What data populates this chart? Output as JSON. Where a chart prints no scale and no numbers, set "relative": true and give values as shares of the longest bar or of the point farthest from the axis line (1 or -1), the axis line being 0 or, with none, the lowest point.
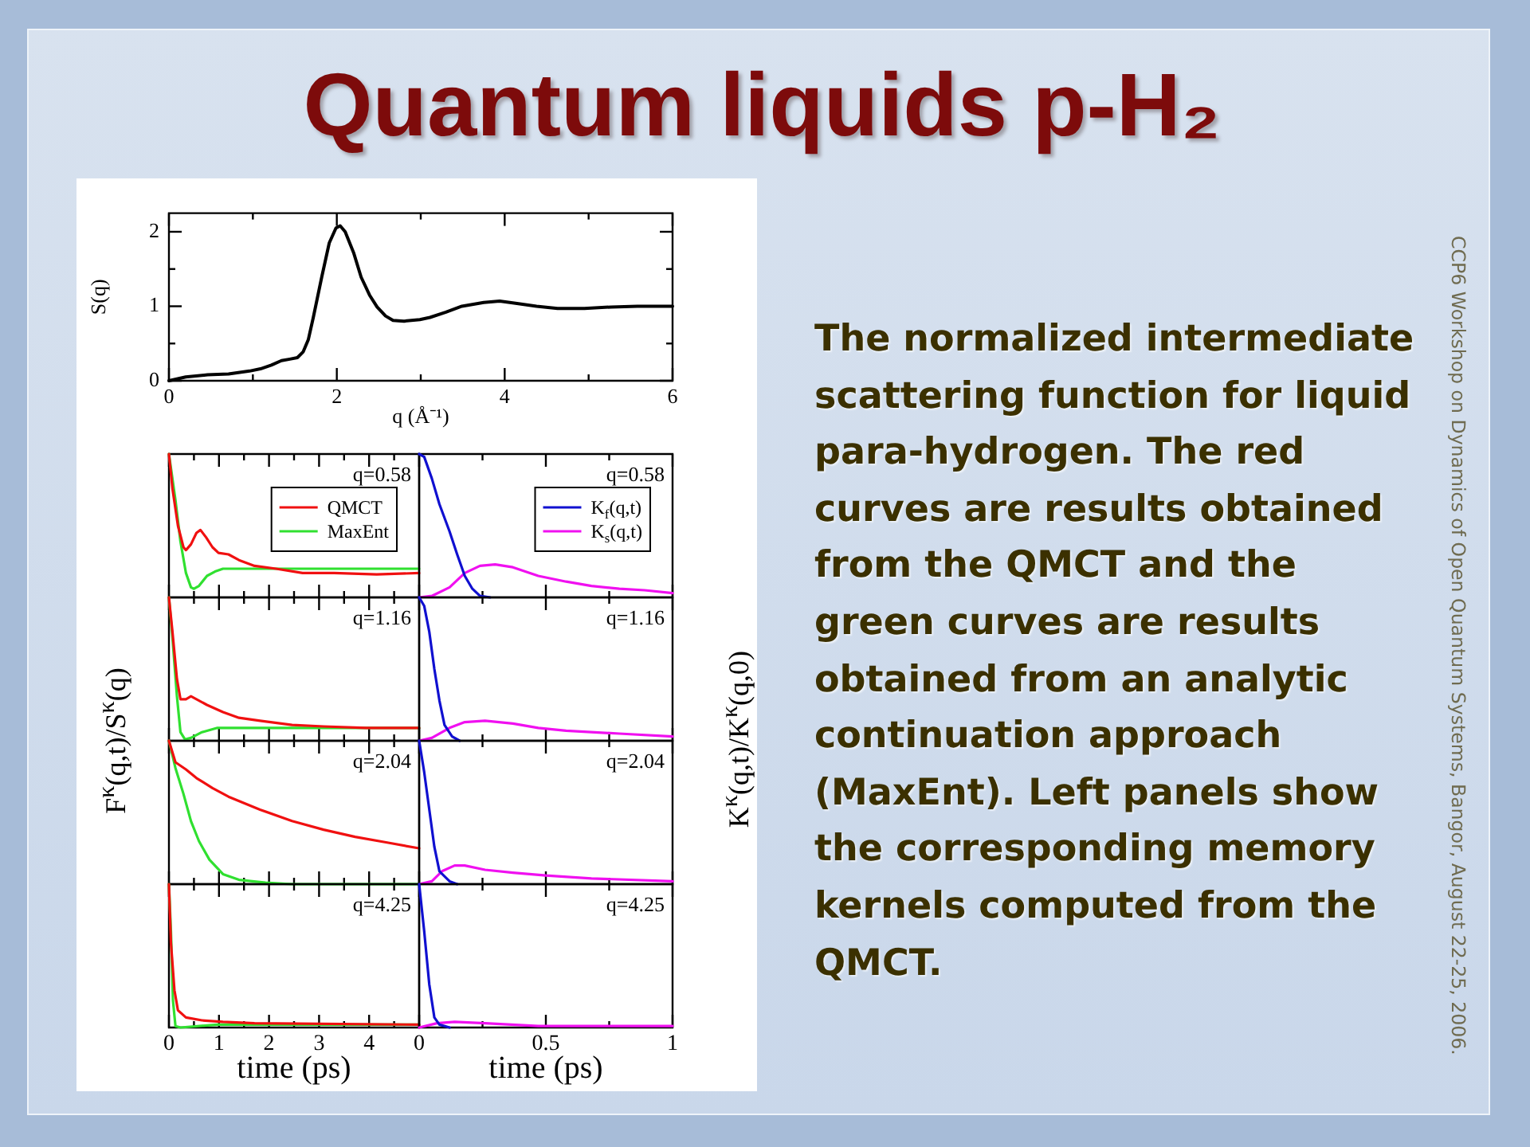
{
  "chart_data": [
    {
      "type": "other",
      "title": "Quantum liquids p-H₂",
      "annotations": [
        "The normalized intermediate scattering function for liquid para-hydrogen. The red curves are results obtained from the QMCT and the green curves are results obtained from an analytic continuation approach (MaxEnt). Left panels show the corresponding memory kernels computed from the QMCT.",
        "CCP6 Workshop on Dynamics of Open Quantum Systems, Bangor, August 22-25, 2006."
      ]
    },
    {
      "type": "line",
      "xlabel": "q (Å⁻¹)",
      "ylabel": "S(q)",
      "x": [
        0,
        0.2,
        0.46,
        0.71,
        0.96,
        1.09,
        1.22,
        1.34,
        1.44,
        1.53,
        1.6,
        1.66,
        1.72,
        1.82,
        1.91,
        1.99,
        2.04,
        2.1,
        2.2,
        2.29,
        2.39,
        2.48,
        2.58,
        2.67,
        2.8,
        2.99,
        3.11,
        3.3,
        3.49,
        3.75,
        3.94,
        4.13,
        4.38,
        4.63,
        4.95,
        5.27,
        5.58,
        6
      ],
      "values": [
        0,
        0.05,
        0.08,
        0.09,
        0.13,
        0.16,
        0.21,
        0.27,
        0.29,
        0.31,
        0.39,
        0.55,
        0.85,
        1.39,
        1.85,
        2.05,
        2.08,
        2.0,
        1.72,
        1.39,
        1.15,
        0.99,
        0.87,
        0.81,
        0.8,
        0.82,
        0.85,
        0.92,
        1.0,
        1.05,
        1.07,
        1.04,
        1.0,
        0.97,
        0.97,
        0.99,
        1.0,
        1.0
      ],
      "color": "#000000",
      "xlim": [
        0,
        6
      ],
      "ylim": [
        0,
        2.25
      ],
      "xticks": [
        0,
        {
          "value": 1,
          "label": null
        },
        2,
        {
          "value": 3,
          "label": null
        },
        4,
        {
          "value": 5,
          "label": null
        },
        6
      ],
      "yticks": [
        0,
        {
          "value": 0.5,
          "label": null
        },
        1,
        {
          "value": 1.5,
          "label": null
        },
        2
      ]
    },
    {
      "type": "line",
      "relative": true,
      "annotations": [
        "q=0.58"
      ],
      "legend": "top right",
      "tick_labels": false,
      "xlim": [
        0,
        5
      ],
      "xticks": [
        0,
        {
          "value": 0.5,
          "label": null
        },
        1,
        {
          "value": 1.5,
          "label": null
        },
        2,
        {
          "value": 2.5,
          "label": null
        },
        3,
        {
          "value": 3.5,
          "label": null
        },
        4,
        {
          "value": 4.5,
          "label": null
        }
      ],
      "series": [
        {
          "name": "QMCT",
          "color": "#f01010",
          "x": [
            0,
            0.07,
            0.18,
            0.29,
            0.34,
            0.44,
            0.55,
            0.63,
            0.74,
            0.87,
            0.99,
            1.19,
            1.4,
            1.71,
            2.14,
            2.67,
            3.3,
            4.15,
            5
          ],
          "values": [
            1,
            0.76,
            0.5,
            0.35,
            0.33,
            0.37,
            0.45,
            0.47,
            0.42,
            0.35,
            0.31,
            0.3,
            0.26,
            0.22,
            0.2,
            0.17,
            0.17,
            0.16,
            0.17
          ]
        },
        {
          "name": "MaxEnt",
          "color": "#30e030",
          "x": [
            0,
            0.13,
            0.23,
            0.34,
            0.44,
            0.5,
            0.6,
            0.76,
            0.92,
            1.08,
            1.4,
            5
          ],
          "values": [
            1,
            0.68,
            0.39,
            0.17,
            0.07,
            0.06,
            0.08,
            0.15,
            0.18,
            0.2,
            0.2,
            0.2
          ]
        }
      ]
    },
    {
      "type": "line",
      "relative": true,
      "annotations": [
        "q=0.58"
      ],
      "legend": "top right",
      "tick_labels": false,
      "xlim": [
        0,
        1
      ],
      "xticks": [
        0,
        {
          "value": 0.25,
          "label": null
        },
        0.5,
        {
          "value": 0.75,
          "label": null
        },
        1
      ],
      "series": [
        {
          "name": "K$_{f}$(q,t)",
          "color": "#1010d0",
          "x": [
            0,
            0.02,
            0.05,
            0.08,
            0.12,
            0.15,
            0.18,
            0.21,
            0.24,
            0.28
          ],
          "values": [
            1,
            0.98,
            0.83,
            0.65,
            0.46,
            0.3,
            0.15,
            0.06,
            0.01,
            0
          ]
        },
        {
          "name": "K$_{s}$(q,t)",
          "color": "#f010f0",
          "x": [
            0,
            0.05,
            0.12,
            0.18,
            0.24,
            0.3,
            0.37,
            0.47,
            0.58,
            0.68,
            0.79,
            0.89,
            1
          ],
          "values": [
            0,
            0.01,
            0.07,
            0.17,
            0.22,
            0.23,
            0.21,
            0.15,
            0.11,
            0.08,
            0.06,
            0.05,
            0.03
          ]
        }
      ]
    },
    {
      "type": "line",
      "relative": true,
      "annotations": [
        "q=1.16"
      ],
      "ylabel": "F$^{κ}$(q,t)/S$^{κ}$(q)",
      "tick_labels": false,
      "xlim": [
        0,
        5
      ],
      "xticks": [
        0,
        {
          "value": 0.5,
          "label": null
        },
        1,
        {
          "value": 1.5,
          "label": null
        },
        2,
        {
          "value": 2.5,
          "label": null
        },
        3,
        {
          "value": 3.5,
          "label": null
        },
        4,
        {
          "value": 4.5,
          "label": null
        }
      ],
      "series": [
        {
          "color": "#f01010",
          "x": [
            0,
            0.07,
            0.16,
            0.23,
            0.34,
            0.44,
            0.55,
            0.76,
            1.08,
            1.4,
            1.82,
            2.46,
            3.09,
            3.94,
            5
          ],
          "values": [
            1,
            0.76,
            0.43,
            0.29,
            0.29,
            0.31,
            0.29,
            0.25,
            0.2,
            0.16,
            0.14,
            0.11,
            0.1,
            0.09,
            0.09
          ]
        },
        {
          "color": "#30e030",
          "x": [
            0,
            0.07,
            0.16,
            0.23,
            0.32,
            0.44,
            0.66,
            0.97,
            1.4,
            5
          ],
          "values": [
            1,
            0.72,
            0.31,
            0.06,
            0.01,
            0.02,
            0.06,
            0.09,
            0.09,
            0.09
          ]
        }
      ]
    },
    {
      "type": "line",
      "relative": true,
      "annotations": [
        "q=1.16"
      ],
      "ylabel": "K$^{κ}$(q,t)/K$^{κ}$(q,0)",
      "tick_labels": false,
      "xlim": [
        0,
        1
      ],
      "xticks": [
        0,
        {
          "value": 0.25,
          "label": null
        },
        0.5,
        {
          "value": 0.75,
          "label": null
        },
        1
      ],
      "series": [
        {
          "color": "#1010d0",
          "x": [
            0,
            0.02,
            0.04,
            0.06,
            0.08,
            0.1,
            0.13,
            0.16
          ],
          "values": [
            1,
            0.94,
            0.76,
            0.5,
            0.28,
            0.11,
            0.03,
            0
          ]
        },
        {
          "color": "#f010f0",
          "x": [
            0,
            0.05,
            0.12,
            0.18,
            0.26,
            0.37,
            0.47,
            0.58,
            0.79,
            1
          ],
          "values": [
            0,
            0.02,
            0.09,
            0.13,
            0.14,
            0.12,
            0.09,
            0.07,
            0.05,
            0.03
          ]
        }
      ]
    },
    {
      "type": "line",
      "relative": true,
      "annotations": [
        "q=2.04"
      ],
      "tick_labels": false,
      "xlim": [
        0,
        5
      ],
      "xticks": [
        0,
        {
          "value": 0.5,
          "label": null
        },
        1,
        {
          "value": 1.5,
          "label": null
        },
        2,
        {
          "value": 2.5,
          "label": null
        },
        3,
        {
          "value": 3.5,
          "label": null
        },
        4,
        {
          "value": 4.5,
          "label": null
        }
      ],
      "series": [
        {
          "color": "#f01010",
          "x": [
            0,
            0.13,
            0.34,
            0.55,
            0.87,
            1.19,
            1.82,
            2.46,
            3.09,
            3.72,
            4.36,
            5
          ],
          "values": [
            1,
            0.85,
            0.8,
            0.74,
            0.67,
            0.61,
            0.52,
            0.44,
            0.38,
            0.33,
            0.29,
            0.25
          ]
        },
        {
          "color": "#30e030",
          "x": [
            0,
            0.13,
            0.29,
            0.44,
            0.6,
            0.81,
            1.08,
            1.4,
            1.93,
            2.46,
            5
          ],
          "values": [
            1,
            0.81,
            0.63,
            0.44,
            0.3,
            0.17,
            0.07,
            0.03,
            0.01,
            0,
            0
          ]
        }
      ]
    },
    {
      "type": "line",
      "relative": true,
      "annotations": [
        "q=2.04"
      ],
      "tick_labels": false,
      "xlim": [
        0,
        1
      ],
      "xticks": [
        0,
        {
          "value": 0.25,
          "label": null
        },
        0.5,
        {
          "value": 0.75,
          "label": null
        },
        1
      ],
      "series": [
        {
          "color": "#1010d0",
          "x": [
            0,
            0.02,
            0.04,
            0.06,
            0.08,
            0.12,
            0.15
          ],
          "values": [
            1,
            0.78,
            0.52,
            0.26,
            0.09,
            0.02,
            0
          ]
        },
        {
          "color": "#f010f0",
          "x": [
            0,
            0.05,
            0.09,
            0.14,
            0.18,
            0.26,
            0.37,
            0.5,
            0.68,
            1
          ],
          "values": [
            0,
            0.02,
            0.09,
            0.13,
            0.13,
            0.1,
            0.08,
            0.06,
            0.04,
            0.02
          ]
        }
      ]
    },
    {
      "type": "line",
      "relative": true,
      "annotations": [
        "q=4.25"
      ],
      "xlabel": "time (ps)",
      "tick_labels": "x",
      "xlim": [
        0,
        5
      ],
      "xticks": [
        0,
        {
          "value": 0.5,
          "label": null
        },
        1,
        {
          "value": 1.5,
          "label": null
        },
        2,
        {
          "value": 2.5,
          "label": null
        },
        3,
        {
          "value": 3.5,
          "label": null
        },
        4,
        {
          "value": 4.5,
          "label": null
        }
      ],
      "series": [
        {
          "color": "#f01010",
          "x": [
            0,
            0.04,
            0.11,
            0.18,
            0.34,
            0.66,
            1.08,
            1.71,
            5
          ],
          "values": [
            1,
            0.59,
            0.26,
            0.12,
            0.07,
            0.05,
            0.04,
            0.03,
            0.02
          ]
        },
        {
          "color": "#30e030",
          "x": [
            0,
            0.04,
            0.08,
            0.13,
            0.23,
            0.97,
            5
          ],
          "values": [
            1,
            0.67,
            0.19,
            0.01,
            0,
            0.02,
            0.02
          ]
        }
      ]
    },
    {
      "type": "line",
      "relative": true,
      "annotations": [
        "q=4.25"
      ],
      "xlabel": "time (ps)",
      "tick_labels": "x",
      "xlim": [
        0,
        1
      ],
      "xticks": [
        0,
        {
          "value": 0.25,
          "label": null
        },
        0.5,
        {
          "value": 0.75,
          "label": null
        },
        1
      ],
      "series": [
        {
          "color": "#1010d0",
          "x": [
            0,
            0.02,
            0.04,
            0.06,
            0.08,
            0.12
          ],
          "values": [
            1,
            0.67,
            0.3,
            0.07,
            0.02,
            0
          ]
        },
        {
          "color": "#f010f0",
          "x": [
            0,
            0.07,
            0.14,
            0.26,
            0.47,
            1
          ],
          "values": [
            0,
            0.03,
            0.04,
            0.03,
            0.01,
            0.01
          ]
        }
      ]
    }
  ]
}
